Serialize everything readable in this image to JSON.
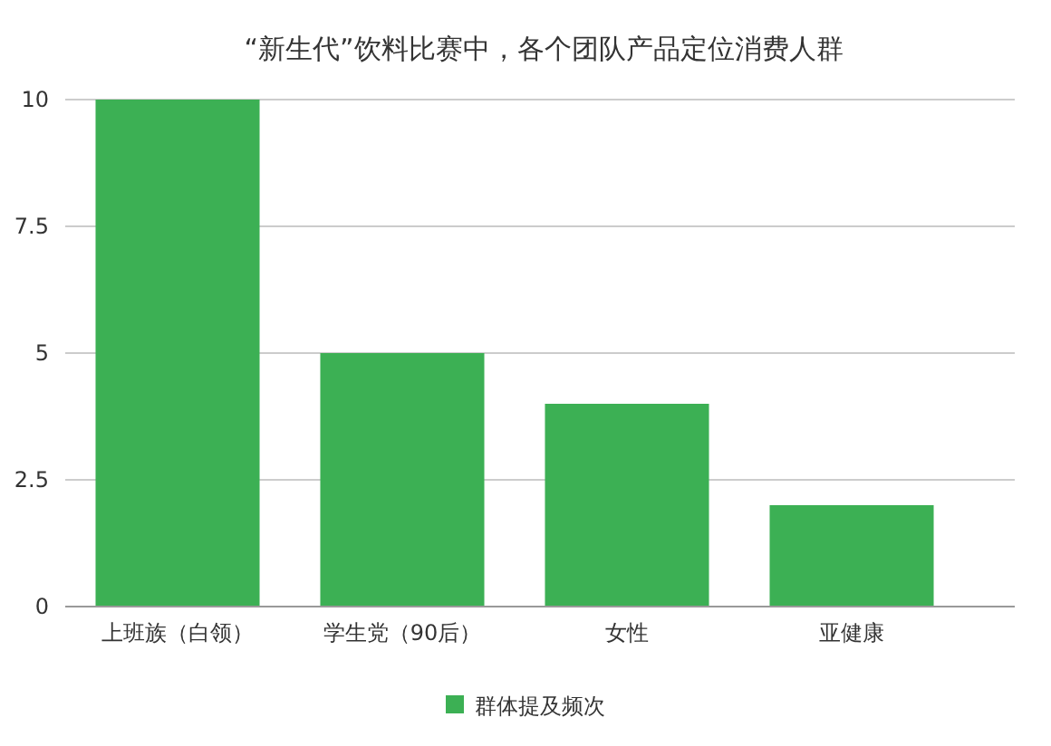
{
  "chart_data": {
    "type": "bar",
    "title": "“新生代”饮料比赛中，各个团队产品定位消费人群",
    "categories": [
      "上班族（白领）",
      "学生党（90后）",
      "女性",
      "亚健康"
    ],
    "series": [
      {
        "name": "群体提及频次",
        "color": "#3cb054",
        "values": [
          10,
          5,
          4,
          2
        ]
      }
    ],
    "ylim": [
      0,
      10
    ],
    "yticks": [
      0,
      2.5,
      5,
      7.5,
      10
    ],
    "grid": "y",
    "legend": "bottom"
  }
}
